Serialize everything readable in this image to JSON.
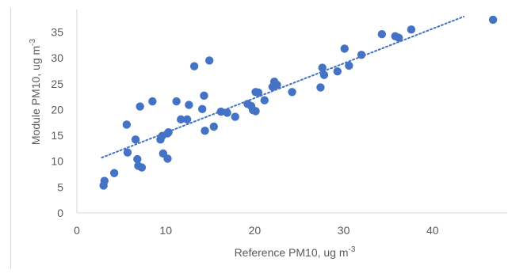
{
  "chart_data": {
    "type": "scatter",
    "title": "",
    "xlabel": "Reference PM10, ug m",
    "xlabel_sup": "-3",
    "ylabel": "Module PM10, ug m",
    "ylabel_sup": "-3",
    "xlim": [
      0,
      50
    ],
    "ylim": [
      0,
      38
    ],
    "x_ticks": [
      0,
      10,
      20,
      30,
      40
    ],
    "y_ticks": [
      0,
      5,
      10,
      15,
      20,
      25,
      30,
      35
    ],
    "grid": false,
    "legend": "none",
    "colors": {
      "marker": "#4472c4",
      "trendline": "#4472c4",
      "axis": "#d9d9d9",
      "text": "#595959"
    },
    "trendline": {
      "style": "dotted",
      "x": [
        2.8,
        43.5
      ],
      "y": [
        10.7,
        38.0
      ]
    },
    "points": [
      {
        "x": 3.0,
        "y": 5.3
      },
      {
        "x": 3.1,
        "y": 6.2
      },
      {
        "x": 4.2,
        "y": 7.7
      },
      {
        "x": 5.6,
        "y": 17.1
      },
      {
        "x": 5.7,
        "y": 11.7
      },
      {
        "x": 6.6,
        "y": 14.2
      },
      {
        "x": 6.8,
        "y": 10.4
      },
      {
        "x": 6.9,
        "y": 9.1
      },
      {
        "x": 7.1,
        "y": 20.6
      },
      {
        "x": 7.3,
        "y": 8.8
      },
      {
        "x": 8.5,
        "y": 21.6
      },
      {
        "x": 9.4,
        "y": 14.2
      },
      {
        "x": 9.6,
        "y": 14.9
      },
      {
        "x": 9.7,
        "y": 11.5
      },
      {
        "x": 10.2,
        "y": 15.4
      },
      {
        "x": 10.2,
        "y": 10.5
      },
      {
        "x": 10.3,
        "y": 15.6
      },
      {
        "x": 11.2,
        "y": 21.6
      },
      {
        "x": 11.7,
        "y": 18.1
      },
      {
        "x": 12.4,
        "y": 18.1
      },
      {
        "x": 12.6,
        "y": 20.9
      },
      {
        "x": 13.2,
        "y": 28.4
      },
      {
        "x": 14.1,
        "y": 20.1
      },
      {
        "x": 14.3,
        "y": 22.7
      },
      {
        "x": 14.4,
        "y": 15.9
      },
      {
        "x": 14.9,
        "y": 29.5
      },
      {
        "x": 15.4,
        "y": 16.7
      },
      {
        "x": 16.2,
        "y": 19.6
      },
      {
        "x": 16.9,
        "y": 19.4
      },
      {
        "x": 17.8,
        "y": 18.6
      },
      {
        "x": 19.2,
        "y": 21.1
      },
      {
        "x": 19.6,
        "y": 20.7
      },
      {
        "x": 19.8,
        "y": 19.9
      },
      {
        "x": 20.1,
        "y": 19.7
      },
      {
        "x": 20.1,
        "y": 23.4
      },
      {
        "x": 20.4,
        "y": 23.3
      },
      {
        "x": 21.1,
        "y": 21.8
      },
      {
        "x": 22.0,
        "y": 24.4
      },
      {
        "x": 22.2,
        "y": 25.4
      },
      {
        "x": 22.5,
        "y": 24.8
      },
      {
        "x": 24.2,
        "y": 23.4
      },
      {
        "x": 27.4,
        "y": 24.3
      },
      {
        "x": 27.6,
        "y": 28.1
      },
      {
        "x": 27.8,
        "y": 26.7
      },
      {
        "x": 29.3,
        "y": 27.4
      },
      {
        "x": 30.1,
        "y": 31.8
      },
      {
        "x": 30.6,
        "y": 28.5
      },
      {
        "x": 32.0,
        "y": 30.6
      },
      {
        "x": 34.3,
        "y": 34.6
      },
      {
        "x": 35.8,
        "y": 34.2
      },
      {
        "x": 36.2,
        "y": 33.9
      },
      {
        "x": 37.6,
        "y": 35.5
      },
      {
        "x": 46.8,
        "y": 37.4
      }
    ]
  }
}
